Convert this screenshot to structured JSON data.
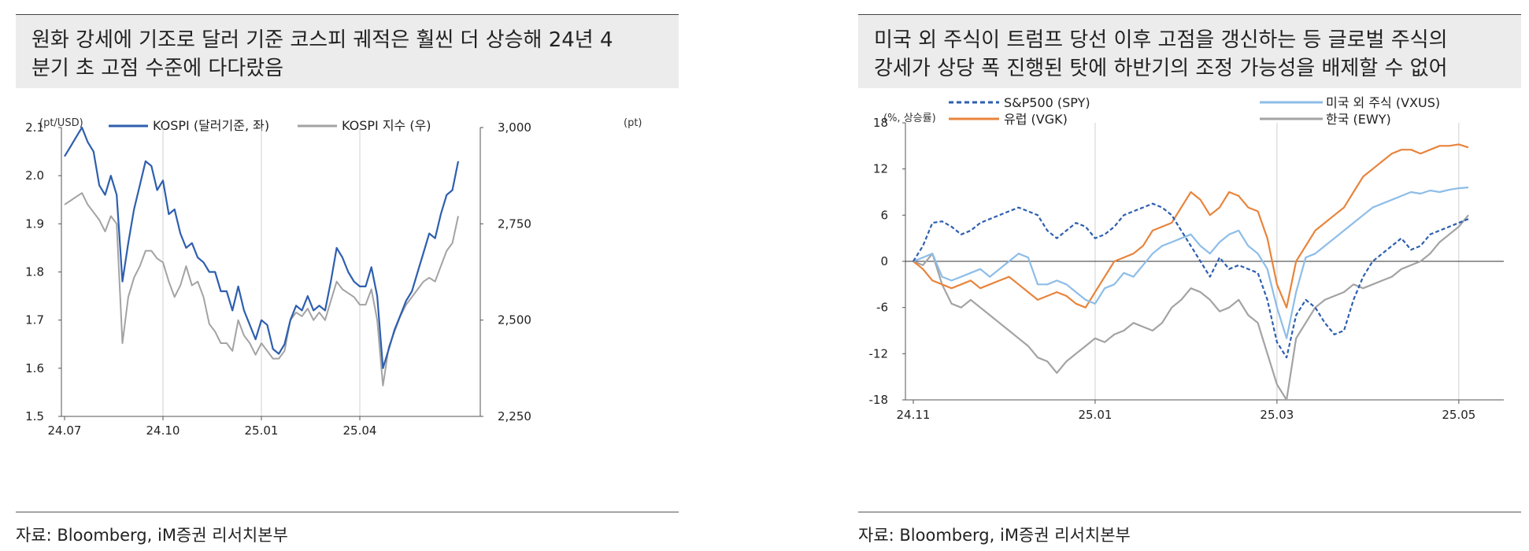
{
  "left": {
    "title_line1": "원화 강세에 기조로 달러 기준 코스피 궤적은 훨씬 더 상승해 24년 4",
    "title_line2": "분기 초 고점 수준에 다다랐음",
    "left_unit": "(pt/USD)",
    "right_unit": "(pt)",
    "source": "자료: Bloomberg, iM증권 리서치본부"
  },
  "right": {
    "title_line1": "미국 외 주식이 트럼프 당선 이후 고점을 갱신하는 등 글로벌 주식의",
    "title_line2": "강세가 상당 폭 진행된 탓에 하반기의 조정 가능성을 배제할 수 없어",
    "unit": "(%, 상승률)",
    "source": "자료: Bloomberg, iM증권 리서치본부"
  },
  "chart_data": [
    {
      "type": "line",
      "x_ticks": [
        "24.07",
        "24.10",
        "25.01",
        "25.04"
      ],
      "ylim_left": [
        1.5,
        2.1
      ],
      "y_ticks_left": [
        "1.5",
        "1.6",
        "1.7",
        "1.8",
        "1.9",
        "2.0",
        "2.1"
      ],
      "ylim_right": [
        2250,
        3000
      ],
      "y_ticks_right": [
        "2,250",
        "2,500",
        "2,750",
        "3,000"
      ],
      "legend_position": "top",
      "series": [
        {
          "name": "KOSPI (달러기준, 좌)",
          "color": "#2e5fae",
          "axis": "left",
          "values": [
            2.04,
            2.06,
            2.08,
            2.1,
            2.07,
            2.05,
            1.98,
            1.96,
            2.0,
            1.96,
            1.78,
            1.86,
            1.93,
            1.98,
            2.03,
            2.02,
            1.97,
            1.99,
            1.92,
            1.93,
            1.88,
            1.85,
            1.86,
            1.83,
            1.82,
            1.8,
            1.8,
            1.76,
            1.76,
            1.72,
            1.77,
            1.72,
            1.69,
            1.66,
            1.7,
            1.69,
            1.64,
            1.63,
            1.65,
            1.7,
            1.73,
            1.72,
            1.75,
            1.72,
            1.73,
            1.72,
            1.78,
            1.85,
            1.83,
            1.8,
            1.78,
            1.77,
            1.77,
            1.81,
            1.75,
            1.6,
            1.64,
            1.68,
            1.71,
            1.74,
            1.76,
            1.8,
            1.84,
            1.88,
            1.87,
            1.92,
            1.96,
            1.97,
            2.03
          ]
        },
        {
          "name": "KOSPI 지수 (우)",
          "color": "#a3a3a3",
          "axis": "right",
          "values": [
            2800,
            2810,
            2820,
            2830,
            2800,
            2780,
            2760,
            2730,
            2770,
            2750,
            2440,
            2560,
            2610,
            2640,
            2680,
            2680,
            2660,
            2650,
            2600,
            2560,
            2590,
            2640,
            2590,
            2600,
            2560,
            2490,
            2470,
            2440,
            2440,
            2420,
            2500,
            2460,
            2440,
            2410,
            2440,
            2420,
            2400,
            2400,
            2420,
            2500,
            2520,
            2510,
            2530,
            2500,
            2520,
            2500,
            2550,
            2600,
            2580,
            2570,
            2560,
            2540,
            2540,
            2580,
            2500,
            2330,
            2430,
            2470,
            2510,
            2540,
            2560,
            2580,
            2600,
            2610,
            2600,
            2640,
            2680,
            2700,
            2770
          ]
        }
      ]
    },
    {
      "type": "line",
      "x_ticks": [
        "24.11",
        "25.01",
        "25.03",
        "25.05"
      ],
      "ylim": [
        -18,
        18
      ],
      "y_ticks": [
        "18",
        "12",
        "6",
        "0",
        "-6",
        "-12",
        "-18"
      ],
      "legend_position": "top",
      "series": [
        {
          "name": "S&P500 (SPY)",
          "color": "#2e5fae",
          "dash": true,
          "values": [
            0.0,
            2.0,
            5.0,
            5.2,
            4.5,
            3.5,
            4.0,
            5.0,
            5.5,
            6.0,
            6.5,
            7.0,
            6.5,
            6.0,
            4.0,
            3.0,
            4.0,
            5.0,
            4.5,
            3.0,
            3.5,
            4.5,
            6.0,
            6.5,
            7.0,
            7.5,
            7.0,
            6.0,
            4.0,
            2.0,
            0.0,
            -2.0,
            0.5,
            -1.0,
            -0.5,
            -1.0,
            -1.5,
            -5.0,
            -10.5,
            -12.5,
            -7.0,
            -5.0,
            -6.0,
            -8.0,
            -9.5,
            -9.0,
            -5.0,
            -2.0,
            0.0,
            1.0,
            2.0,
            3.0,
            1.5,
            2.0,
            3.5,
            4.0,
            4.5,
            5.0,
            5.5
          ]
        },
        {
          "name": "미국 외 주식 (VXUS)",
          "color": "#8dbde8",
          "dash": false,
          "values": [
            0.0,
            0.5,
            1.0,
            -2.0,
            -2.5,
            -2.0,
            -1.5,
            -1.0,
            -2.0,
            -1.0,
            0.0,
            1.0,
            0.5,
            -3.0,
            -3.0,
            -2.5,
            -3.0,
            -4.0,
            -5.0,
            -5.5,
            -3.5,
            -3.0,
            -1.5,
            -2.0,
            -0.5,
            1.0,
            2.0,
            2.5,
            3.0,
            3.5,
            2.0,
            1.0,
            2.5,
            3.5,
            4.0,
            2.0,
            1.0,
            -1.0,
            -6.0,
            -10.0,
            -4.0,
            0.5,
            1.0,
            2.0,
            3.0,
            4.0,
            5.0,
            6.0,
            7.0,
            7.5,
            8.0,
            8.5,
            9.0,
            8.8,
            9.2,
            9.0,
            9.3,
            9.5,
            9.6
          ]
        },
        {
          "name": "유럽 (VGK)",
          "color": "#e8843c",
          "dash": false,
          "values": [
            0.0,
            -1.0,
            -2.5,
            -3.0,
            -3.5,
            -3.0,
            -2.5,
            -3.5,
            -3.0,
            -2.5,
            -2.0,
            -3.0,
            -4.0,
            -5.0,
            -4.5,
            -4.0,
            -4.5,
            -5.5,
            -6.0,
            -4.0,
            -2.0,
            0.0,
            0.5,
            1.0,
            2.0,
            4.0,
            4.5,
            5.0,
            7.0,
            9.0,
            8.0,
            6.0,
            7.0,
            9.0,
            8.5,
            7.0,
            6.5,
            3.0,
            -3.0,
            -6.0,
            0.0,
            2.0,
            4.0,
            5.0,
            6.0,
            7.0,
            9.0,
            11.0,
            12.0,
            13.0,
            14.0,
            14.5,
            14.5,
            14.0,
            14.5,
            15.0,
            15.0,
            15.2,
            14.8
          ]
        },
        {
          "name": "한국 (EWY)",
          "color": "#a3a3a3",
          "dash": false,
          "values": [
            0.0,
            -0.5,
            1.0,
            -3.0,
            -5.5,
            -6.0,
            -5.0,
            -6.0,
            -7.0,
            -8.0,
            -9.0,
            -10.0,
            -11.0,
            -12.5,
            -13.0,
            -14.5,
            -13.0,
            -12.0,
            -11.0,
            -10.0,
            -10.5,
            -9.5,
            -9.0,
            -8.0,
            -8.5,
            -9.0,
            -8.0,
            -6.0,
            -5.0,
            -3.5,
            -4.0,
            -5.0,
            -6.5,
            -6.0,
            -5.0,
            -7.0,
            -8.0,
            -12.0,
            -16.0,
            -18.0,
            -10.0,
            -8.0,
            -6.0,
            -5.0,
            -4.5,
            -4.0,
            -3.0,
            -3.5,
            -3.0,
            -2.5,
            -2.0,
            -1.0,
            -0.5,
            0.0,
            1.0,
            2.5,
            3.5,
            4.5,
            6.0
          ]
        }
      ]
    }
  ]
}
